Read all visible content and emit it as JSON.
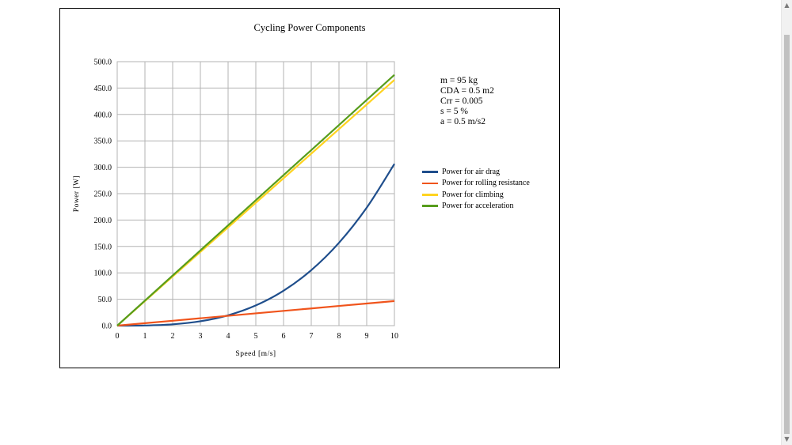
{
  "chart_data": {
    "type": "line",
    "title": "Cycling Power Components",
    "xlabel": "Speed [m/s]",
    "ylabel": "Power [W]",
    "xlim": [
      0,
      10
    ],
    "ylim": [
      0,
      500
    ],
    "xticks": [
      "0",
      "1",
      "2",
      "3",
      "4",
      "5",
      "6",
      "7",
      "8",
      "9",
      "10"
    ],
    "yticks": [
      "0.0",
      "50.0",
      "100.0",
      "150.0",
      "200.0",
      "250.0",
      "300.0",
      "350.0",
      "400.0",
      "450.0",
      "500.0"
    ],
    "grid": true,
    "legend_position": "right",
    "x": [
      0,
      1,
      2,
      3,
      4,
      5,
      6,
      7,
      8,
      9,
      10
    ],
    "series": [
      {
        "name": "Power for air drag",
        "color": "#1f4e8c",
        "values": [
          0,
          0.3,
          2.5,
          8.3,
          19.6,
          38.3,
          66.2,
          105.1,
          156.9,
          223.4,
          306.4
        ]
      },
      {
        "name": "Power for rolling resistance",
        "color": "#f0541c",
        "values": [
          0,
          4.7,
          9.3,
          14.0,
          18.6,
          23.3,
          28.0,
          32.6,
          37.3,
          41.9,
          46.6
        ]
      },
      {
        "name": "Power for climbing",
        "color": "#ffd320",
        "values": [
          0,
          46.5,
          93.1,
          139.6,
          186.2,
          232.7,
          279.2,
          325.8,
          372.3,
          418.8,
          465.4
        ]
      },
      {
        "name": "Power for acceleration",
        "color": "#579d1c",
        "values": [
          0,
          47.5,
          95.0,
          142.5,
          190.0,
          237.5,
          285.0,
          332.5,
          380.0,
          427.5,
          475.0
        ]
      }
    ]
  },
  "parameters": [
    "m = 95 kg",
    "CDA = 0.5 m2",
    "Crr = 0.005",
    "s = 5 %",
    "a = 0.5 m/s2"
  ],
  "scrollbar": {
    "up_icon": "arrow-up-icon",
    "down_icon": "arrow-down-icon"
  }
}
